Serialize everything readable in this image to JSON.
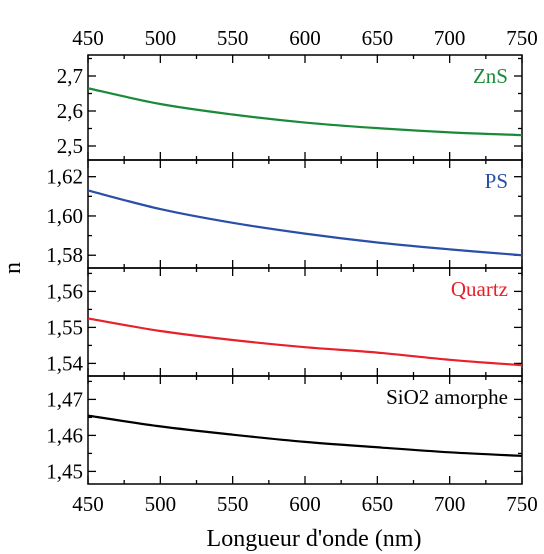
{
  "chart_data": {
    "type": "line",
    "xlabel": "Longueur d'onde (nm)",
    "ylabel": "n",
    "xlim": [
      450,
      750
    ],
    "x_ticks": [
      450,
      500,
      550,
      600,
      650,
      700,
      750
    ],
    "x_tick_labels": [
      "450",
      "500",
      "550",
      "600",
      "650",
      "700",
      "750"
    ],
    "grid": false,
    "panels": [
      {
        "name": "ZnS",
        "color": "#1a8a3a",
        "ylim": [
          2.46,
          2.76
        ],
        "y_ticks": [
          2.5,
          2.6,
          2.7
        ],
        "y_tick_labels": [
          "2,5",
          "2,6",
          "2,7"
        ],
        "x": [
          450,
          500,
          550,
          600,
          650,
          700,
          750
        ],
        "values": [
          2.665,
          2.62,
          2.59,
          2.567,
          2.551,
          2.539,
          2.531
        ]
      },
      {
        "name": "PS",
        "color": "#2a4fa8",
        "ylim": [
          1.5735,
          1.6285
        ],
        "y_ticks": [
          1.58,
          1.6,
          1.62
        ],
        "y_tick_labels": [
          "1,58",
          "1,60",
          "1,62"
        ],
        "x": [
          450,
          500,
          550,
          600,
          650,
          700,
          750
        ],
        "values": [
          1.613,
          1.6035,
          1.5965,
          1.591,
          1.5865,
          1.583,
          1.58
        ]
      },
      {
        "name": "Quartz",
        "color": "#e8202a",
        "ylim": [
          1.5365,
          1.5665
        ],
        "y_ticks": [
          1.54,
          1.55,
          1.56
        ],
        "y_tick_labels": [
          "1,54",
          "1,55",
          "1,56"
        ],
        "x": [
          450,
          500,
          550,
          600,
          650,
          700,
          750
        ],
        "values": [
          1.5525,
          1.549,
          1.5465,
          1.5445,
          1.543,
          1.541,
          1.5395
        ]
      },
      {
        "name": "SiO2 amorphe",
        "color": "#000000",
        "ylim": [
          1.4465,
          1.4765
        ],
        "y_ticks": [
          1.45,
          1.46,
          1.47
        ],
        "y_tick_labels": [
          "1,45",
          "1,46",
          "1,47"
        ],
        "x": [
          450,
          500,
          550,
          600,
          650,
          700,
          750
        ],
        "values": [
          1.4655,
          1.4625,
          1.4602,
          1.4582,
          1.4567,
          1.4553,
          1.4543
        ]
      }
    ]
  }
}
